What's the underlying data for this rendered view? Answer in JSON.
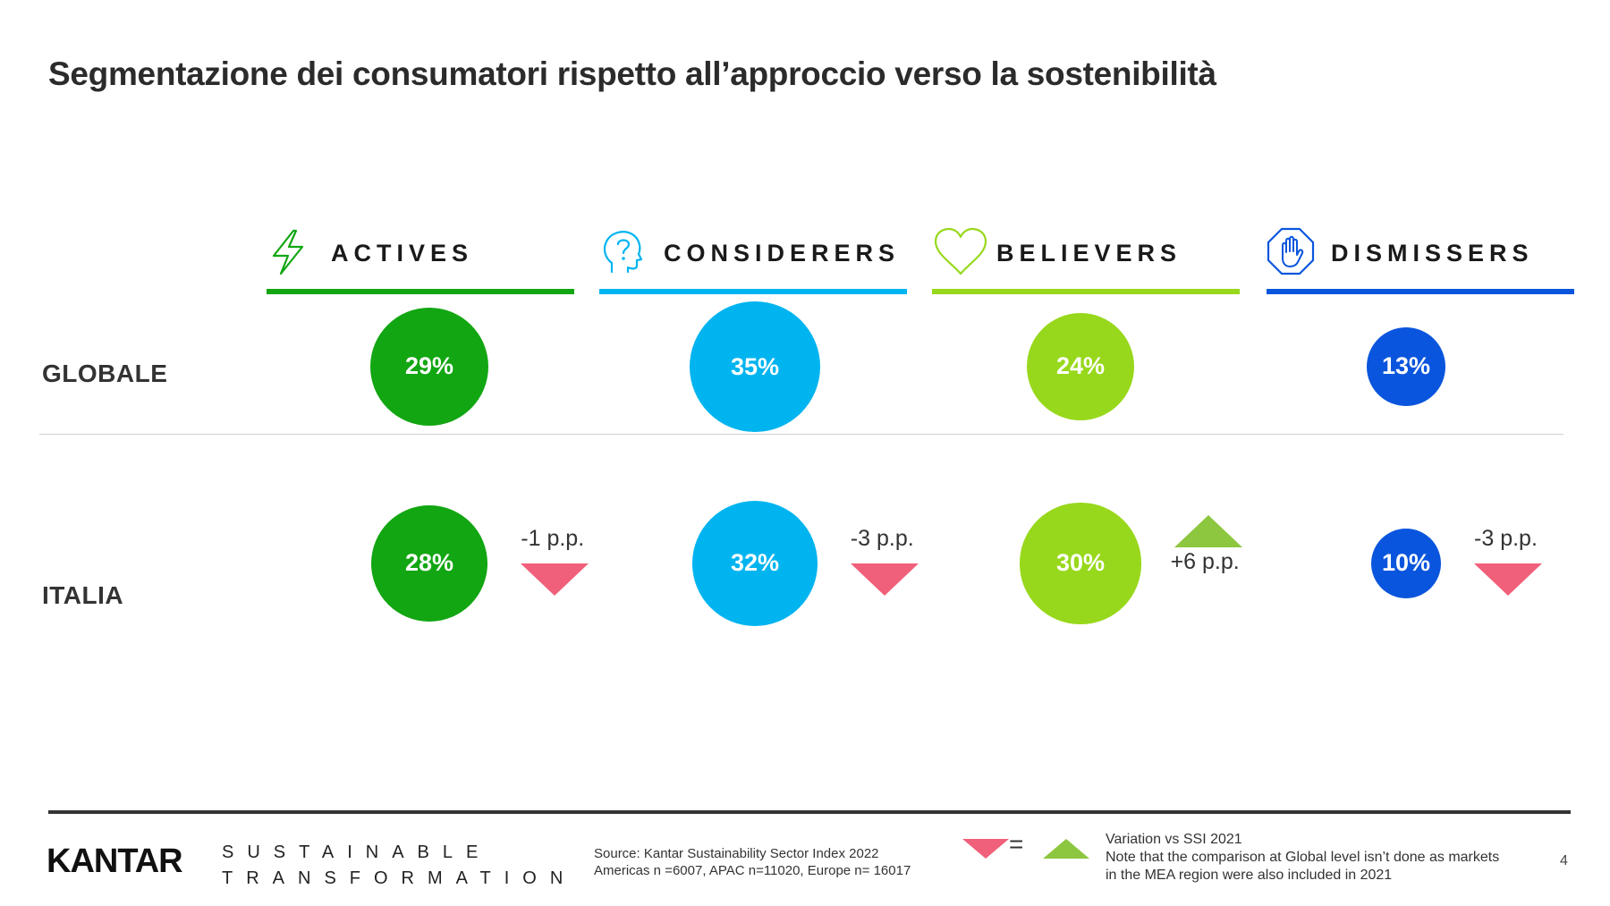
{
  "title": "Segmentazione dei consumatori rispetto all’approccio verso la sostenibilità",
  "segments": [
    {
      "label": "ACTIVES",
      "icon": "lightning-icon",
      "color": "#12a612"
    },
    {
      "label": "CONSIDERERS",
      "icon": "head-question-icon",
      "color": "#00b4f0"
    },
    {
      "label": "BELIEVERS",
      "icon": "heart-icon",
      "color": "#98d81c"
    },
    {
      "label": "DISMISSERS",
      "icon": "stop-hand-icon",
      "color": "#0a55dd"
    }
  ],
  "rows": {
    "globale": "GLOBALE",
    "italia": "ITALIA"
  },
  "chart_data": {
    "type": "bubble",
    "title": "Segmentazione dei consumatori rispetto all’approccio verso la sostenibilità",
    "categories": [
      "ACTIVES",
      "CONSIDERERS",
      "BELIEVERS",
      "DISMISSERS"
    ],
    "series": [
      {
        "name": "GLOBALE",
        "values": [
          29,
          35,
          24,
          13
        ],
        "labels": [
          "29%",
          "35%",
          "24%",
          "13%"
        ]
      },
      {
        "name": "ITALIA",
        "values": [
          28,
          32,
          30,
          10
        ],
        "labels": [
          "28%",
          "32%",
          "30%",
          "10%"
        ]
      }
    ],
    "variation": [
      {
        "category": "ACTIVES",
        "value": -1,
        "label": "-1 p.p.",
        "direction": "down"
      },
      {
        "category": "CONSIDERERS",
        "value": -3,
        "label": "-3 p.p.",
        "direction": "down"
      },
      {
        "category": "BELIEVERS",
        "value": 6,
        "label": "+6 p.p.",
        "direction": "up"
      },
      {
        "category": "DISMISSERS",
        "value": -3,
        "label": "-3 p.p.",
        "direction": "down"
      }
    ],
    "colors": {
      "down": "#f0607a",
      "up": "#8dc63f"
    }
  },
  "footer": {
    "brand": "KANTAR",
    "tagline_1": "SUSTAINABLE",
    "tagline_2": "TRANSFORMATION",
    "source_line_1": "Source: Kantar Sustainability Sector Index 2022",
    "source_line_2": "Americas n =6007,  APAC n=11020, Europe  n= 16017",
    "equals": "=",
    "note_line_1": "Variation vs SSI 2021",
    "note_line_2": "Note that the comparison at Global level isn’t done as markets",
    "note_line_3": "in the MEA  region were also included in 2021",
    "page": "4"
  }
}
